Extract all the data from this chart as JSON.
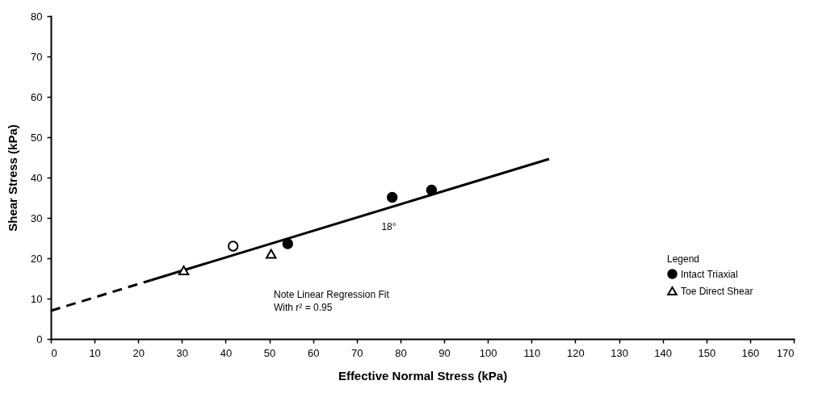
{
  "chart_data": {
    "type": "scatter",
    "xlabel": "Effective Normal Stress (kPa)",
    "ylabel": "Shear Stress (kPa)",
    "legend_title": "Legend",
    "series": [
      {
        "name": "Intact Triaxial",
        "color": "#000000",
        "marker": "circle",
        "x": [
          54.2,
          78.1,
          87.1
        ],
        "values": [
          23.6,
          35.1,
          36.9
        ]
      },
      {
        "name": "Toe Direct Shear",
        "color": "#ffffff",
        "marker": "triangle",
        "x": [
          30.4,
          50.4
        ],
        "values": [
          17.0,
          21.1
        ]
      },
      {
        "color": "#ffffff",
        "marker": "circle",
        "x": [
          41.7
        ],
        "values": [
          23.0
        ]
      },
      {
        "type": "line",
        "color": "#000000",
        "line_style": "dashed",
        "x": [
          0,
          23
        ],
        "values": [
          7.0,
          14.6
        ]
      },
      {
        "type": "line",
        "color": "#000000",
        "line_style": "solid",
        "x": [
          23,
          114
        ],
        "values": [
          14.6,
          44.6
        ]
      }
    ],
    "annotations": [
      "Note   Linear Regression Fit\nWith r² = 0.95",
      "18°"
    ],
    "xlim": [
      0,
      170
    ],
    "xticks": [
      0,
      10,
      20,
      30,
      40,
      50,
      60,
      70,
      80,
      90,
      100,
      110,
      120,
      130,
      140,
      150,
      160,
      170
    ],
    "ylim": [
      0,
      80
    ],
    "yticks": [
      0,
      10,
      20,
      30,
      40,
      50,
      60,
      70,
      80
    ],
    "grid": false,
    "legend": "bottom right"
  }
}
